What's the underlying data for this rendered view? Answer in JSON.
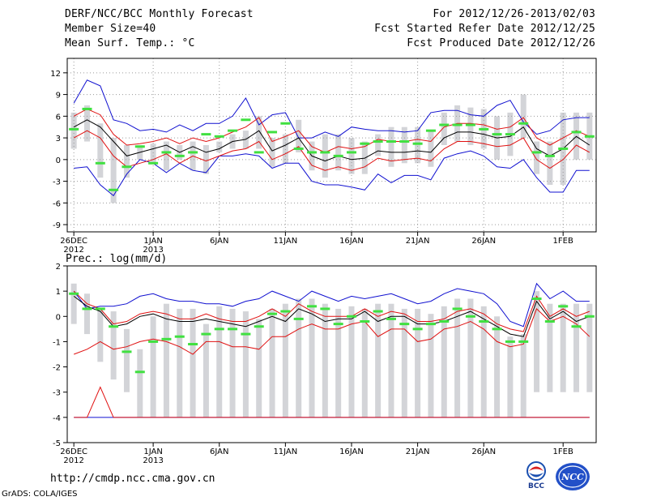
{
  "header": {
    "title": "DERF/NCC/BCC Monthly Forecast",
    "member_size": "Member Size=40",
    "variable": "Mean Surf. Temp.: °C",
    "period": "For 2012/12/26-2013/02/03",
    "started": "Fcst Started Refer Date 2012/12/25",
    "produced": "Fcst Produced Date 2012/12/26"
  },
  "footer": {
    "url": "http://cmdp.ncc.cma.gov.cn",
    "credit": "GrADS: COLA/IGES",
    "logo_left": "BCC",
    "logo_right": "NCC"
  },
  "colors": {
    "box": "#d3d4d8",
    "mean_mark": "#40e040",
    "median": "#000000",
    "inner_env": "#e01010",
    "outer_env": "#1010d0"
  },
  "chart_data": [
    {
      "type": "box",
      "title": "",
      "ylabel": "",
      "ylim": [
        -10,
        14
      ],
      "yticks": [
        12,
        9,
        6,
        3,
        0,
        -3,
        -6,
        -9
      ],
      "ytick_labels": [
        "12",
        "9",
        "6",
        "3",
        "0",
        "-3",
        "-6",
        "-9"
      ],
      "xticks": [
        1,
        7,
        12,
        17,
        22,
        27,
        32,
        38
      ],
      "xtick_labels": [
        "26DEC\n2012",
        "1JAN\n2013",
        "6JAN",
        "11JAN",
        "16JAN",
        "21JAN",
        "26JAN",
        "1FEB"
      ],
      "days": 40,
      "median": [
        4.5,
        5.5,
        4.5,
        2.5,
        0.5,
        1.0,
        1.5,
        2.0,
        1.0,
        1.8,
        1.0,
        1.5,
        2.5,
        2.8,
        4.0,
        1.2,
        2.0,
        3.0,
        0.5,
        -0.2,
        0.5,
        0.0,
        0.2,
        1.2,
        1.0,
        1.0,
        1.2,
        1.0,
        3.0,
        3.8,
        3.8,
        3.5,
        3.0,
        3.2,
        4.5,
        1.5,
        0.5,
        1.5,
        3.2,
        2.0
      ],
      "inner_upper": [
        6.0,
        7.0,
        6.2,
        3.5,
        2.0,
        2.2,
        2.5,
        3.0,
        2.2,
        3.0,
        2.5,
        3.0,
        3.8,
        4.5,
        5.8,
        2.5,
        3.2,
        4.0,
        1.8,
        1.0,
        1.8,
        1.5,
        1.8,
        2.8,
        2.5,
        2.5,
        2.8,
        2.5,
        4.5,
        5.0,
        5.0,
        4.8,
        4.2,
        4.5,
        5.8,
        3.0,
        2.0,
        3.0,
        4.0,
        3.2
      ],
      "inner_lower": [
        3.0,
        4.0,
        3.0,
        0.5,
        -1.0,
        -0.5,
        0.0,
        0.8,
        -0.5,
        0.5,
        -0.2,
        0.5,
        1.2,
        1.5,
        2.5,
        0.0,
        0.8,
        1.8,
        -0.8,
        -1.5,
        -1.0,
        -1.5,
        -1.0,
        0.2,
        -0.2,
        0.0,
        0.2,
        -0.2,
        1.5,
        2.5,
        2.5,
        2.2,
        1.8,
        2.0,
        3.0,
        0.0,
        -1.2,
        0.0,
        2.0,
        1.0
      ],
      "outer_upper": [
        7.8,
        11.0,
        10.2,
        5.5,
        5.0,
        4.0,
        4.2,
        3.8,
        4.8,
        4.0,
        5.0,
        5.0,
        6.0,
        8.5,
        4.8,
        6.2,
        6.5,
        3.0,
        3.0,
        3.8,
        3.2,
        4.5,
        4.2,
        4.0,
        4.0,
        3.8,
        4.0,
        6.5,
        6.8,
        6.8,
        6.2,
        6.0,
        7.5,
        8.2,
        5.2,
        3.5,
        4.0,
        5.5,
        5.8,
        5.8
      ],
      "outer_lower": [
        -1.2,
        -1.0,
        -3.5,
        -5.0,
        -2.0,
        0.0,
        -0.5,
        -1.8,
        -0.5,
        -1.5,
        -1.8,
        0.5,
        0.5,
        0.8,
        0.5,
        -1.2,
        -0.5,
        -0.5,
        -3.0,
        -3.5,
        -3.5,
        -3.8,
        -4.2,
        -2.0,
        -3.2,
        -2.2,
        -2.2,
        -2.8,
        0.2,
        0.8,
        1.2,
        0.5,
        -1.0,
        -1.2,
        0.0,
        -2.5,
        -4.5,
        -4.5,
        -1.5,
        -1.5
      ],
      "box_top": [
        6.5,
        7.5,
        5.0,
        3.0,
        2.0,
        2.0,
        2.2,
        2.5,
        2.0,
        2.5,
        2.0,
        2.5,
        3.5,
        4.0,
        6.0,
        3.0,
        3.5,
        5.5,
        2.5,
        3.5,
        3.5,
        3.0,
        2.5,
        3.5,
        4.5,
        4.5,
        4.5,
        4.0,
        6.5,
        7.5,
        7.2,
        7.0,
        6.0,
        6.5,
        9.0,
        2.5,
        2.5,
        6.5,
        6.5,
        6.5
      ],
      "box_bottom": [
        1.5,
        2.5,
        -2.5,
        -6.0,
        -2.5,
        0.0,
        -0.5,
        -1.5,
        0.0,
        -1.5,
        -2.0,
        1.0,
        1.5,
        1.5,
        1.5,
        -1.0,
        -0.5,
        1.0,
        -1.5,
        -2.5,
        -1.5,
        -2.0,
        -2.0,
        0.5,
        -1.0,
        -0.5,
        -0.5,
        -1.0,
        2.0,
        2.5,
        2.0,
        1.5,
        0.0,
        0.5,
        3.0,
        -2.0,
        -3.5,
        -3.5,
        0.0,
        0.0
      ],
      "mean_mark": [
        4.2,
        7.0,
        -0.5,
        -4.2,
        -1.0,
        1.8,
        -0.5,
        1.0,
        0.5,
        1.0,
        3.5,
        3.2,
        4.0,
        5.5,
        1.0,
        3.8,
        5.0,
        1.5,
        1.0,
        1.0,
        0.5,
        1.0,
        2.2,
        2.5,
        2.5,
        2.5,
        2.2,
        4.0,
        4.8,
        4.8,
        4.8,
        4.2,
        3.5,
        3.5,
        5.0,
        1.0,
        0.5,
        1.5,
        3.8,
        3.2
      ]
    },
    {
      "type": "box",
      "title": "Prec.: log(mm/d)",
      "ylabel": "",
      "ylim": [
        -5,
        2
      ],
      "yticks": [
        2,
        1,
        0,
        -1,
        -2,
        -3,
        -4,
        -5
      ],
      "ytick_labels": [
        "2",
        "1",
        "0",
        "-1",
        "-2",
        "-3",
        "-4",
        "-5"
      ],
      "xticks": [
        1,
        7,
        12,
        17,
        22,
        27,
        32,
        38
      ],
      "xtick_labels": [
        "26DEC\n2012",
        "1JAN\n2013",
        "6JAN",
        "11JAN",
        "16JAN",
        "21JAN",
        "26JAN",
        "1FEB"
      ],
      "days": 40,
      "median": [
        0.8,
        0.4,
        0.2,
        -0.4,
        -0.3,
        0.0,
        0.1,
        -0.1,
        -0.2,
        -0.2,
        -0.1,
        -0.2,
        -0.3,
        -0.4,
        -0.2,
        0.0,
        -0.2,
        0.3,
        0.1,
        -0.2,
        -0.1,
        -0.1,
        0.2,
        -0.2,
        0.0,
        0.0,
        -0.3,
        -0.3,
        -0.2,
        0.0,
        0.2,
        -0.1,
        -0.4,
        -0.7,
        -0.8,
        0.6,
        -0.1,
        0.2,
        -0.2,
        0.0
      ],
      "inner_upper": [
        1.0,
        0.5,
        0.3,
        -0.3,
        -0.2,
        0.1,
        0.2,
        0.1,
        -0.1,
        -0.1,
        0.1,
        -0.1,
        -0.2,
        -0.2,
        0.0,
        0.3,
        0.0,
        0.5,
        0.2,
        0.0,
        0.0,
        0.0,
        0.3,
        0.0,
        0.2,
        0.1,
        -0.2,
        -0.2,
        -0.1,
        0.2,
        0.3,
        0.1,
        -0.3,
        -0.5,
        -0.6,
        0.8,
        0.0,
        0.3,
        0.0,
        0.2
      ],
      "inner_lower": [
        -1.5,
        -1.3,
        -1.0,
        -1.3,
        -1.2,
        -1.0,
        -0.9,
        -1.0,
        -1.2,
        -1.5,
        -1.0,
        -1.0,
        -1.2,
        -1.2,
        -1.3,
        -0.8,
        -0.8,
        -0.5,
        -0.3,
        -0.5,
        -0.5,
        -0.3,
        -0.2,
        -0.8,
        -0.5,
        -0.5,
        -1.0,
        -0.9,
        -0.5,
        -0.4,
        -0.2,
        -0.5,
        -1.0,
        -1.2,
        -1.1,
        0.3,
        -0.2,
        0.0,
        -0.3,
        -0.8
      ],
      "outer_upper": [
        1.0,
        0.3,
        0.4,
        0.4,
        0.5,
        0.8,
        0.9,
        0.7,
        0.6,
        0.6,
        0.5,
        0.5,
        0.4,
        0.6,
        0.7,
        1.0,
        0.8,
        0.6,
        1.0,
        0.8,
        0.6,
        0.8,
        0.7,
        0.8,
        0.9,
        0.7,
        0.5,
        0.6,
        0.9,
        1.1,
        1.0,
        0.9,
        0.5,
        -0.2,
        -0.4,
        1.3,
        0.7,
        1.0,
        0.6,
        0.6
      ],
      "outer_lower": [
        -4.0,
        -4.0,
        -4.0,
        -4.0,
        -4.0,
        -4.0,
        -4.0,
        -4.0,
        -4.0,
        -4.0,
        -4.0,
        -4.0,
        -4.0,
        -4.0,
        -4.0,
        -4.0,
        -4.0,
        -4.0,
        -4.0,
        -4.0,
        -4.0,
        -4.0,
        -4.0,
        -4.0,
        -4.0,
        -4.0,
        -4.0,
        -4.0,
        -4.0,
        -4.0,
        -4.0,
        -4.0,
        -4.0,
        -4.0,
        -4.0,
        -4.0,
        -4.0,
        -4.0,
        -4.0,
        -4.0
      ],
      "lower_spike": [
        -4.0,
        -4.0,
        -2.8,
        -4.0,
        -4.0,
        -4.0,
        -4.0,
        -4.0,
        -4.0,
        -4.0,
        -4.0,
        -4.0,
        -4.0,
        -4.0,
        -4.0,
        -4.0,
        -4.0,
        -4.0,
        -4.0,
        -4.0,
        -4.0,
        -4.0,
        -4.0,
        -4.0,
        -4.0,
        -4.0,
        -4.0,
        -4.0,
        -4.0,
        -4.0,
        -4.0,
        -4.0,
        -4.0,
        -4.0,
        -4.0,
        -4.0,
        -4.0,
        -4.0,
        -4.0,
        -4.0
      ],
      "box_top": [
        1.3,
        0.9,
        0.3,
        0.2,
        -0.5,
        -1.3,
        0.0,
        0.5,
        0.3,
        0.3,
        -0.3,
        0.4,
        0.3,
        0.2,
        -0.1,
        0.3,
        0.5,
        0.7,
        0.7,
        0.5,
        0.3,
        0.4,
        0.3,
        0.5,
        0.5,
        0.3,
        0.3,
        0.1,
        0.4,
        0.7,
        0.7,
        0.4,
        0.0,
        -0.8,
        -0.7,
        1.0,
        0.5,
        0.5,
        0.5,
        0.5
      ],
      "box_bottom": [
        -0.3,
        -0.7,
        -1.8,
        -2.5,
        -3.0,
        -4.0,
        -4.0,
        -4.0,
        -4.0,
        -4.0,
        -4.0,
        -4.0,
        -4.0,
        -4.0,
        -4.0,
        -4.0,
        -4.0,
        -4.0,
        -4.0,
        -4.0,
        -4.0,
        -4.0,
        -4.0,
        -4.0,
        -4.0,
        -4.0,
        -4.0,
        -4.0,
        -4.0,
        -4.0,
        -4.0,
        -4.0,
        -4.0,
        -4.0,
        -4.0,
        -3.0,
        -3.0,
        -3.0,
        -3.0,
        -3.0
      ],
      "mean_mark": [
        0.9,
        0.3,
        0.3,
        -0.4,
        -1.4,
        -2.2,
        -1.0,
        -0.9,
        -0.8,
        -1.1,
        -0.7,
        -0.5,
        -0.5,
        -0.7,
        -0.4,
        0.1,
        0.2,
        -0.1,
        0.4,
        0.3,
        -0.3,
        0.0,
        -0.2,
        0.2,
        -0.1,
        -0.3,
        -0.5,
        -0.3,
        -0.2,
        0.3,
        0.0,
        -0.2,
        -0.5,
        -1.0,
        -1.0,
        0.7,
        -0.2,
        0.4,
        -0.4,
        0.0
      ]
    }
  ]
}
